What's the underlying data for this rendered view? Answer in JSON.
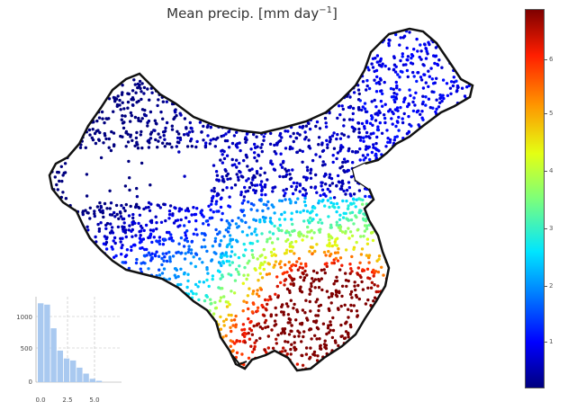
{
  "map": {
    "title_text": "Mean precip. [mm day",
    "title_sup": "−1",
    "title_close": "]"
  },
  "colorbar": {
    "ticks": [
      "1",
      "2",
      "3",
      "4",
      "5",
      "6"
    ],
    "colors": [
      "#00007f",
      "#0000ff",
      "#0080ff",
      "#00e5ff",
      "#7dff7a",
      "#e4ff13",
      "#ff9400",
      "#ff1e00",
      "#7f0000"
    ]
  },
  "histogram": {
    "bar_color": "#a9c9f0",
    "y_ticks": [
      "0",
      "500",
      "1000"
    ],
    "x_ticks": [
      "0.0",
      "2.5",
      "5.0"
    ],
    "counts": [
      1200,
      1180,
      820,
      480,
      360,
      330,
      220,
      130,
      50,
      20
    ]
  }
}
